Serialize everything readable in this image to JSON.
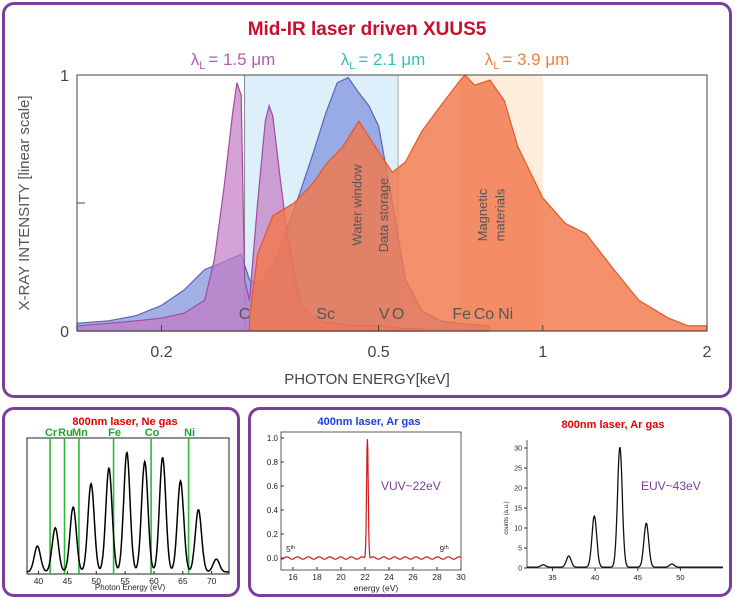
{
  "main_title": "Mid-IR laser driven XUUS5",
  "colors": {
    "title_red": "#c8102e",
    "lam15": "#b85bb0",
    "lam21": "#36c2b4",
    "lam39": "#f07f3c",
    "frame": "#7a3f9d"
  },
  "main_chart": {
    "type": "area",
    "lambda_labels": [
      {
        "sub": "L",
        "value": "= 1.5 μm",
        "color": "#b85bb0"
      },
      {
        "sub": "L",
        "value": "= 2.1 μm",
        "color": "#36c2b4"
      },
      {
        "sub": "L",
        "value": "= 3.9 μm",
        "color": "#f07f3c"
      }
    ],
    "ylabel": "X-RAY INTENSITY [linear scale]",
    "xlabel": "PHOTON ENERGY[keV]",
    "x_scale": "log",
    "xlim": [
      0.14,
      2.0
    ],
    "ylim": [
      0,
      1
    ],
    "x_ticks": [
      "0.2",
      "0.5",
      "1",
      "2"
    ],
    "x_tick_values": [
      0.2,
      0.5,
      1,
      2
    ],
    "y_ticks": [
      "0",
      "1"
    ],
    "y_tick_values": [
      0,
      1
    ],
    "element_labels": [
      {
        "text": "C",
        "x": 0.284
      },
      {
        "text": "Sc",
        "x": 0.4
      },
      {
        "text": "V",
        "x": 0.512
      },
      {
        "text": "O",
        "x": 0.543
      },
      {
        "text": "Fe",
        "x": 0.71
      },
      {
        "text": "Co",
        "x": 0.78
      },
      {
        "text": "Ni",
        "x": 0.855
      }
    ],
    "regions": [
      {
        "label": "Water window",
        "from": 0.284,
        "to": 0.543
      },
      {
        "label": "Data storage",
        "from": 0.543,
        "to": 0.543
      },
      {
        "label": "Magnetic materials",
        "from": 0.7,
        "to": 1.0
      }
    ],
    "series": [
      {
        "key": "lam15",
        "x": [
          0.14,
          0.16,
          0.18,
          0.2,
          0.22,
          0.24,
          0.25,
          0.26,
          0.27,
          0.275,
          0.28,
          0.284,
          0.29,
          0.3,
          0.31,
          0.315,
          0.32,
          0.33,
          0.34,
          0.35,
          0.36,
          0.38,
          0.4,
          0.42,
          0.45,
          0.5,
          0.55,
          0.6
        ],
        "y": [
          0.02,
          0.03,
          0.04,
          0.05,
          0.07,
          0.12,
          0.28,
          0.55,
          0.85,
          0.97,
          0.92,
          0.2,
          0.12,
          0.5,
          0.82,
          0.88,
          0.84,
          0.6,
          0.38,
          0.22,
          0.1,
          0.05,
          0.03,
          0.03,
          0.02,
          0.02,
          0.01,
          0.01
        ]
      },
      {
        "key": "lam21",
        "x": [
          0.14,
          0.16,
          0.18,
          0.2,
          0.22,
          0.24,
          0.26,
          0.28,
          0.29,
          0.3,
          0.32,
          0.34,
          0.36,
          0.38,
          0.4,
          0.42,
          0.44,
          0.46,
          0.48,
          0.5,
          0.52,
          0.54,
          0.56,
          0.6,
          0.65,
          0.7,
          0.8
        ],
        "y": [
          0.03,
          0.04,
          0.06,
          0.1,
          0.16,
          0.24,
          0.27,
          0.3,
          0.2,
          0.18,
          0.25,
          0.4,
          0.55,
          0.7,
          0.85,
          0.97,
          0.99,
          0.93,
          0.88,
          0.8,
          0.6,
          0.4,
          0.2,
          0.08,
          0.04,
          0.03,
          0.02
        ]
      },
      {
        "key": "lam39",
        "x": [
          0.29,
          0.3,
          0.32,
          0.35,
          0.38,
          0.4,
          0.43,
          0.46,
          0.5,
          0.53,
          0.56,
          0.6,
          0.65,
          0.7,
          0.72,
          0.75,
          0.8,
          0.85,
          0.9,
          1.0,
          1.1,
          1.2,
          1.35,
          1.5,
          1.7,
          1.85,
          2.0
        ],
        "y": [
          0.05,
          0.3,
          0.45,
          0.5,
          0.58,
          0.65,
          0.72,
          0.82,
          0.7,
          0.62,
          0.66,
          0.78,
          0.88,
          0.97,
          1.0,
          0.96,
          0.98,
          0.9,
          0.72,
          0.52,
          0.42,
          0.38,
          0.24,
          0.12,
          0.05,
          0.02,
          0.02
        ]
      }
    ]
  },
  "panel1": {
    "title": "800nm laser, Ne gas",
    "xlabel": "Photon Energy (eV)",
    "xlim": [
      38,
      73
    ],
    "x_ticks": [
      "40",
      "45",
      "50",
      "55",
      "60",
      "65",
      "70"
    ],
    "x_tick_values": [
      40,
      45,
      50,
      55,
      60,
      65,
      70
    ],
    "element_lines": [
      {
        "text": "Cr",
        "x": 42
      },
      {
        "text": "Ru",
        "x": 44.5
      },
      {
        "text": "Mn",
        "x": 47
      },
      {
        "text": "Fe",
        "x": 53
      },
      {
        "text": "Co",
        "x": 59.5
      },
      {
        "text": "Ni",
        "x": 66
      }
    ],
    "peaks_x": [
      39.8,
      42.9,
      46.0,
      49.1,
      52.2,
      55.3,
      58.4,
      61.5,
      64.6,
      67.7,
      70.8
    ],
    "peaks_y": [
      0.2,
      0.34,
      0.5,
      0.68,
      0.8,
      0.92,
      0.85,
      0.88,
      0.7,
      0.48,
      0.1
    ]
  },
  "panel2": {
    "title": "400nm laser, Ar gas",
    "annotation": "VUV~22eV",
    "xlabel": "energy (eV)",
    "xlim": [
      15,
      30
    ],
    "ylim": [
      -0.1,
      1.05
    ],
    "x_ticks": [
      "16",
      "18",
      "20",
      "22",
      "24",
      "26",
      "28",
      "30"
    ],
    "x_tick_values": [
      16,
      18,
      20,
      22,
      24,
      26,
      28,
      30
    ],
    "y_ticks": [
      "0.0",
      "0.2",
      "0.4",
      "0.6",
      "0.8",
      "1.0"
    ],
    "y_tick_values": [
      0,
      0.2,
      0.4,
      0.6,
      0.8,
      1.0
    ],
    "peak_x": 22.2,
    "peak_y": 1.0,
    "harmonic_labels": [
      {
        "base": "5",
        "sup": "th",
        "x": 15.8
      },
      {
        "base": "9",
        "sup": "th",
        "x": 28.6
      }
    ]
  },
  "panel3": {
    "title": "800nm laser, Ar gas",
    "annotation": "EUV~43eV",
    "ylabel": "counts (a.u.)",
    "xlim": [
      32,
      55
    ],
    "ylim": [
      0,
      32
    ],
    "x_ticks": [
      "35",
      "40",
      "45",
      "50"
    ],
    "x_tick_values": [
      35,
      40,
      45,
      50
    ],
    "y_ticks": [
      "0",
      "5",
      "10",
      "15",
      "20",
      "25",
      "30"
    ],
    "y_tick_values": [
      0,
      5,
      10,
      15,
      20,
      25,
      30
    ],
    "peaks_x": [
      33.9,
      36.9,
      39.9,
      42.9,
      46.0,
      49.0
    ],
    "peaks_y": [
      0.6,
      2.8,
      12.8,
      30,
      11,
      0.8
    ]
  }
}
